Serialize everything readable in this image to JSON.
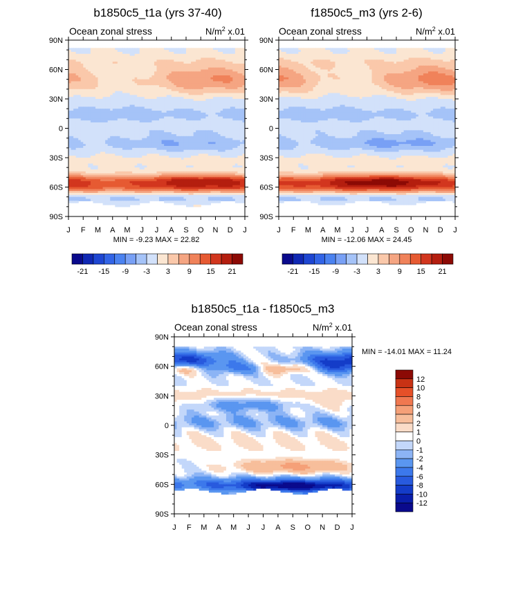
{
  "chart_data": [
    {
      "type": "heatmap",
      "title": "b1850c5_t1a (yrs 37-40)",
      "subtitle_left": "Ocean zonal stress",
      "units": "N/m",
      "units_exp": "2",
      "units_scale": " x.01",
      "x_ticks": [
        "J",
        "F",
        "M",
        "A",
        "M",
        "J",
        "J",
        "A",
        "S",
        "O",
        "N",
        "D",
        "J"
      ],
      "y_ticks": [
        "90N",
        "60N",
        "30N",
        "0",
        "30S",
        "60S",
        "90S"
      ],
      "ylim": [
        -90,
        90
      ],
      "stats": "MIN =  -9.23 MAX =  22.82",
      "colorbar_labels": [
        "-21",
        "-15",
        "-9",
        "-3",
        "3",
        "9",
        "15",
        "21"
      ],
      "fields": {
        "north_peak_lat": 50,
        "north_peak_month": 9.6,
        "north_amp": 9.5,
        "south_amp": 20.5,
        "south_peak_month": 9.0,
        "sub_amp": 6.0
      }
    },
    {
      "type": "heatmap",
      "title": "f1850c5_m3 (yrs 2-6)",
      "subtitle_left": "Ocean zonal stress",
      "units": "N/m",
      "units_exp": "2",
      "units_scale": " x.01",
      "x_ticks": [
        "J",
        "F",
        "M",
        "A",
        "M",
        "J",
        "J",
        "A",
        "S",
        "O",
        "N",
        "D",
        "J"
      ],
      "y_ticks": [
        "90N",
        "60N",
        "30N",
        "0",
        "30S",
        "60S",
        "90S"
      ],
      "ylim": [
        -90,
        90
      ],
      "stats": "MIN = -12.06 MAX =  24.45",
      "colorbar_labels": [
        "-21",
        "-15",
        "-9",
        "-3",
        "3",
        "9",
        "15",
        "21"
      ],
      "fields": {
        "north_peak_lat": 50,
        "north_peak_month": 10.6,
        "north_amp": 10.5,
        "south_amp": 23.0,
        "south_peak_month": 7.0,
        "sub_amp": 7.0
      }
    },
    {
      "type": "heatmap",
      "title": "b1850c5_t1a - f1850c5_m3",
      "subtitle_left": "Ocean zonal stress",
      "units": "N/m",
      "units_exp": "2",
      "units_scale": " x.01",
      "x_ticks": [
        "J",
        "F",
        "M",
        "A",
        "M",
        "J",
        "J",
        "A",
        "S",
        "O",
        "N",
        "D",
        "J"
      ],
      "y_ticks": [
        "90N",
        "60N",
        "30N",
        "0",
        "30S",
        "60S",
        "90S"
      ],
      "ylim": [
        -90,
        90
      ],
      "stats": "MIN = -14.01 MAX =  11.24",
      "colorbar_labels": [
        "12",
        "10",
        "8",
        "6",
        "4",
        "2",
        "1",
        "0",
        "-1",
        "-2",
        "-4",
        "-6",
        "-8",
        "-10",
        "-12"
      ]
    }
  ],
  "colors": {
    "seq16": [
      "#0a0a8c",
      "#1028b4",
      "#1e46d2",
      "#3264e6",
      "#4b82f0",
      "#78a0f5",
      "#a5c3f8",
      "#d2e1fa",
      "#fbe6d2",
      "#fac8aa",
      "#f5a582",
      "#f0825a",
      "#e65a32",
      "#d2361e",
      "#b41e0f",
      "#8c0a05"
    ],
    "diff16": [
      "#0a0a8c",
      "#0a1eaa",
      "#143cc8",
      "#285ade",
      "#3c78eb",
      "#5a96f0",
      "#8cb4f5",
      "#c3d7fa",
      "#ffffff",
      "#fadcc8",
      "#f7be9b",
      "#f5a078",
      "#f07850",
      "#e65028",
      "#c83214",
      "#8c0a05"
    ]
  }
}
